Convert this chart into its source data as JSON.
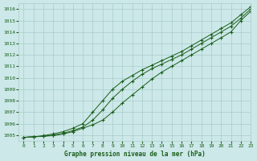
{
  "title": "Graphe pression niveau de la mer (hPa)",
  "bg_color": "#cce8e8",
  "grid_color": "#aacccc",
  "line_color": "#1a5e1a",
  "marker_color": "#1a5e1a",
  "xlim": [
    -0.5,
    23
  ],
  "ylim": [
    1004.5,
    1016.5
  ],
  "xticks": [
    0,
    1,
    2,
    3,
    4,
    5,
    6,
    7,
    8,
    9,
    10,
    11,
    12,
    13,
    14,
    15,
    16,
    17,
    18,
    19,
    20,
    21,
    22,
    23
  ],
  "yticks": [
    1005,
    1006,
    1007,
    1008,
    1009,
    1010,
    1011,
    1012,
    1013,
    1014,
    1015,
    1016
  ],
  "series": [
    [
      1004.8,
      1004.85,
      1004.9,
      1004.95,
      1005.1,
      1005.3,
      1005.6,
      1005.9,
      1006.3,
      1007.0,
      1007.8,
      1008.5,
      1009.2,
      1009.9,
      1010.5,
      1011.0,
      1011.5,
      1012.0,
      1012.5,
      1013.0,
      1013.5,
      1014.0,
      1015.0,
      1015.8
    ],
    [
      1004.8,
      1004.85,
      1004.9,
      1005.0,
      1005.15,
      1005.4,
      1005.7,
      1006.3,
      1007.2,
      1008.2,
      1009.0,
      1009.7,
      1010.3,
      1010.8,
      1011.2,
      1011.6,
      1012.0,
      1012.5,
      1013.0,
      1013.5,
      1014.0,
      1014.5,
      1015.2,
      1016.0
    ],
    [
      1004.8,
      1004.85,
      1004.95,
      1005.1,
      1005.3,
      1005.6,
      1006.0,
      1007.0,
      1008.0,
      1009.0,
      1009.7,
      1010.2,
      1010.7,
      1011.1,
      1011.5,
      1011.9,
      1012.3,
      1012.8,
      1013.3,
      1013.8,
      1014.3,
      1014.8,
      1015.5,
      1016.2
    ]
  ],
  "title_fontsize": 5.5,
  "tick_fontsize": 4.5,
  "figsize": [
    3.2,
    2.0
  ],
  "dpi": 100
}
